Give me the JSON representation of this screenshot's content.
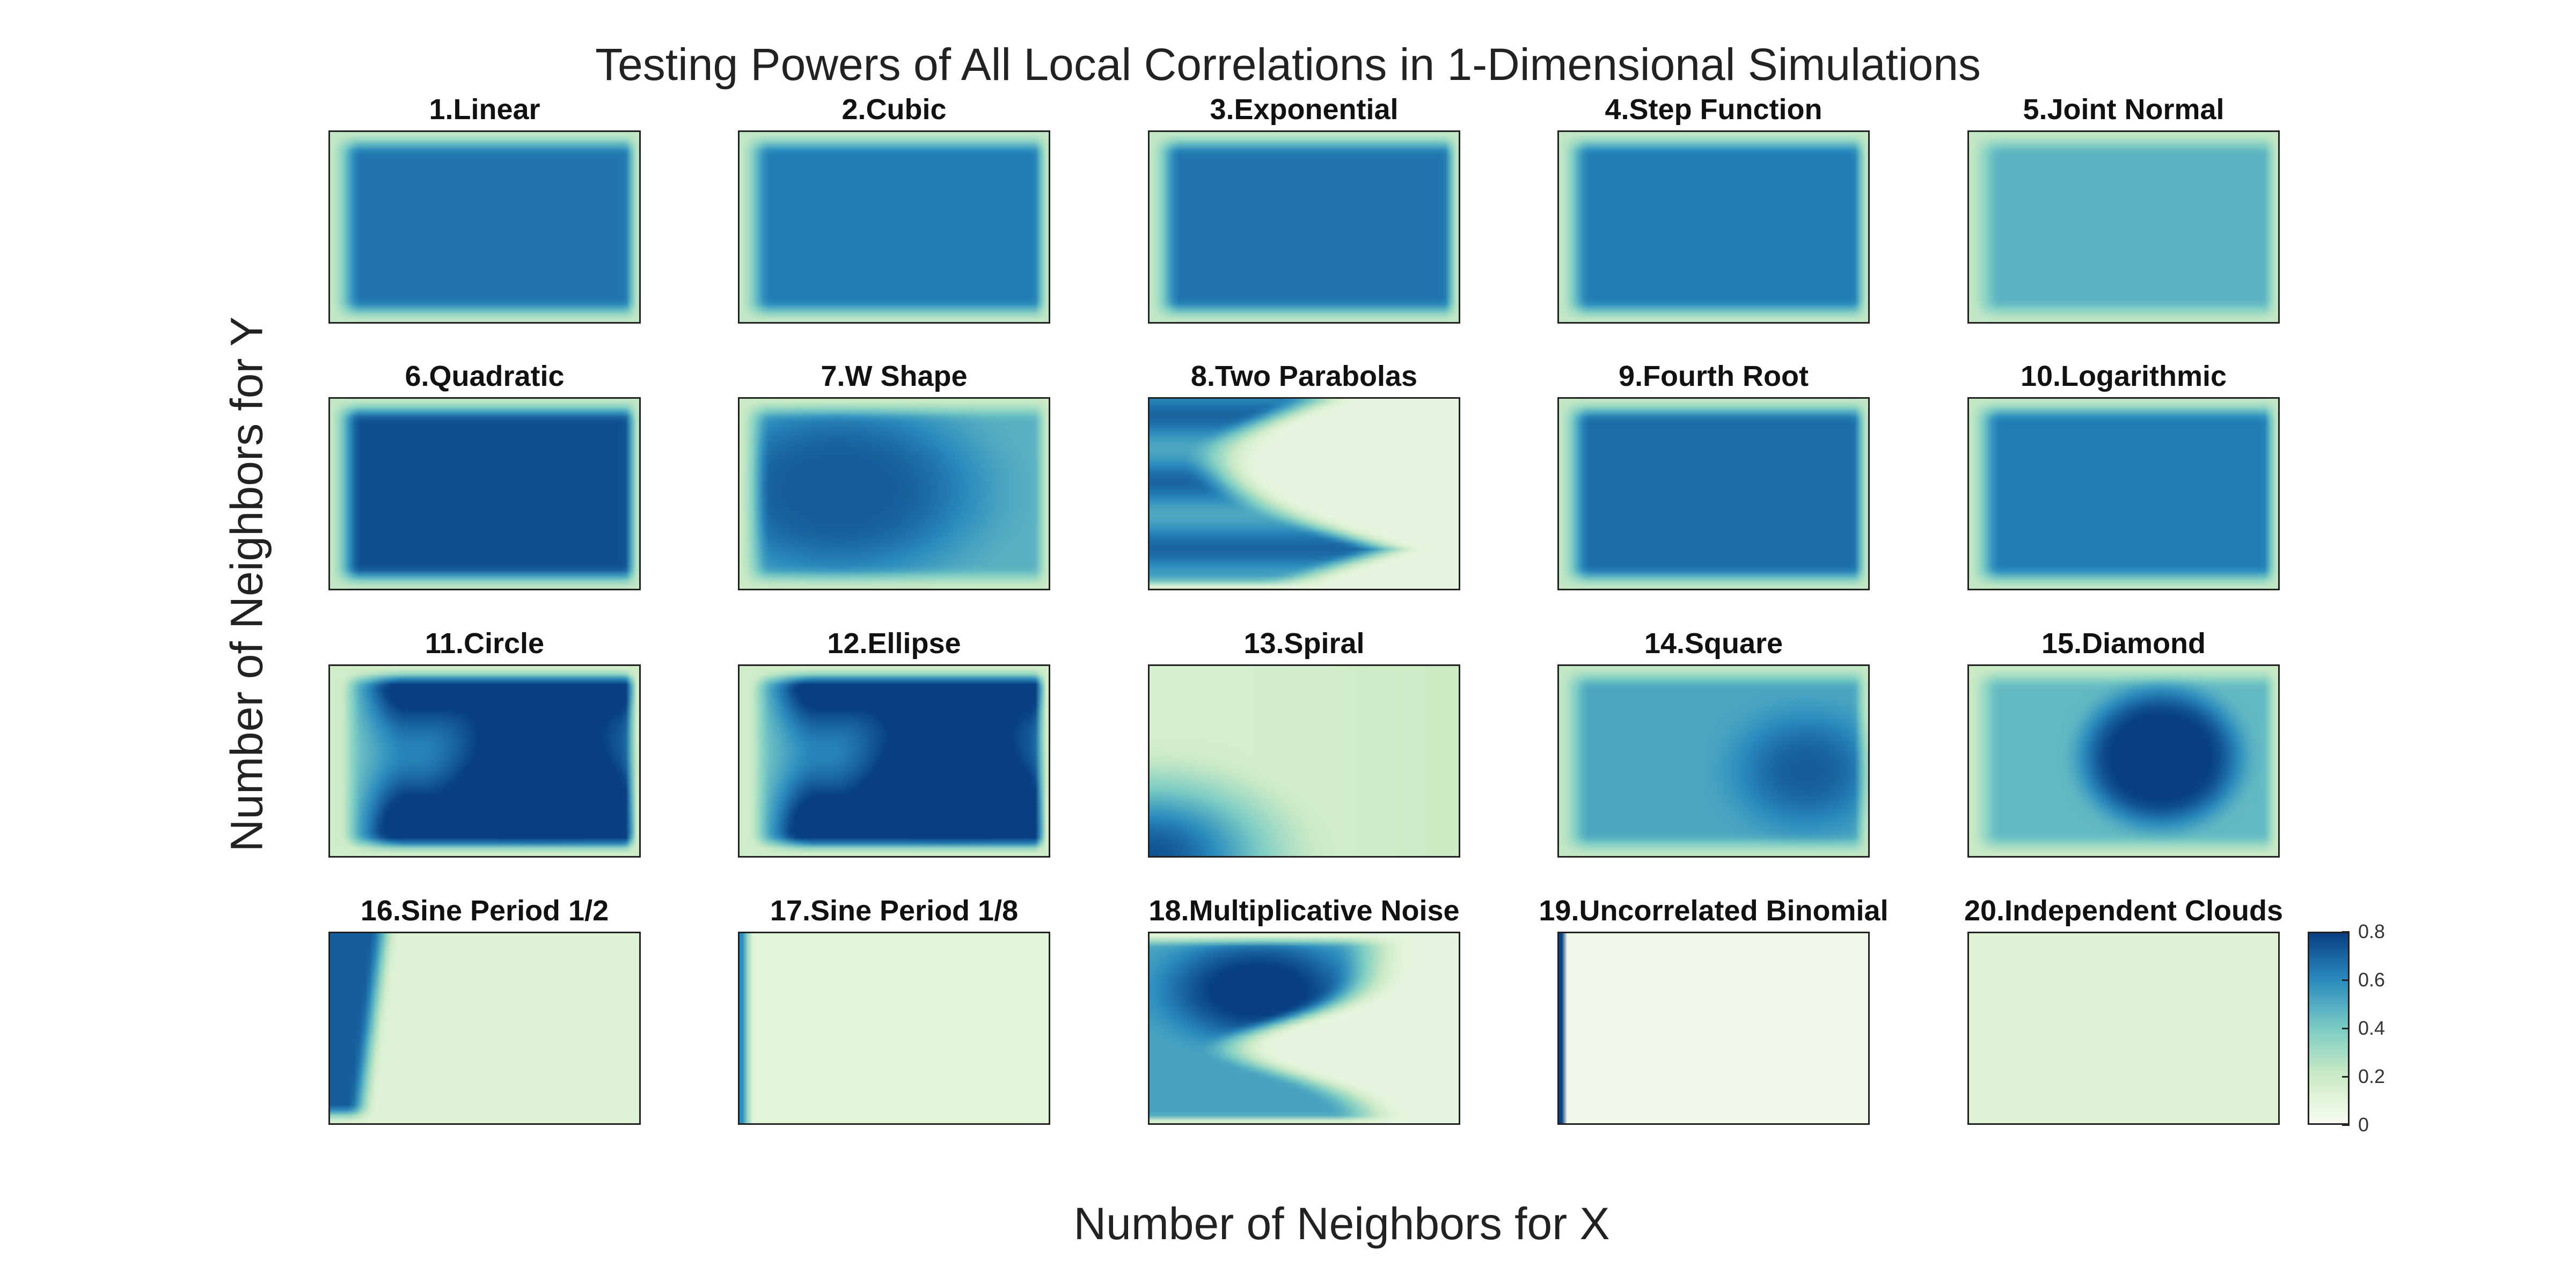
{
  "chart_data": {
    "type": "heatmap",
    "title": "Testing Powers of All Local Correlations in 1-Dimensional Simulations",
    "xlabel": "Number of Neighbors for X",
    "ylabel": "Number of Neighbors for Y",
    "colormap": "GnBu",
    "colorbar": {
      "range": [
        0,
        0.8
      ],
      "ticks": [
        0,
        0.2,
        0.4,
        0.6,
        0.8
      ],
      "tick_labels": [
        "0",
        "0.2",
        "0.4",
        "0.6",
        "0.8"
      ],
      "colors": [
        "#f7fcf0",
        "#ccebc5",
        "#7bccc4",
        "#2b8cbe",
        "#084081"
      ]
    },
    "panels": [
      {
        "title": "1.Linear",
        "pattern": "plateau",
        "level": 0.66,
        "edge": 0.22
      },
      {
        "title": "2.Cubic",
        "pattern": "plateau",
        "level": 0.64,
        "edge": 0.22
      },
      {
        "title": "3.Exponential",
        "pattern": "plateau",
        "level": 0.66,
        "edge": 0.22
      },
      {
        "title": "4.Step Function",
        "pattern": "plateau",
        "level": 0.64,
        "edge": 0.22
      },
      {
        "title": "5.Joint Normal",
        "pattern": "plateau",
        "level": 0.48,
        "edge": 0.22
      },
      {
        "title": "6.Quadratic",
        "pattern": "plateau",
        "level": 0.76,
        "edge": 0.22
      },
      {
        "title": "7.W Shape",
        "pattern": "left-blob",
        "level": 0.72,
        "edge": 0.2
      },
      {
        "title": "8.Two Parabolas",
        "pattern": "bands",
        "level": 0.7,
        "edge": 0.1
      },
      {
        "title": "9.Fourth Root",
        "pattern": "plateau",
        "level": 0.68,
        "edge": 0.22
      },
      {
        "title": "10.Logarithmic",
        "pattern": "plateau",
        "level": 0.64,
        "edge": 0.22
      },
      {
        "title": "11.Circle",
        "pattern": "right-blob",
        "level": 0.8,
        "edge": 0.22
      },
      {
        "title": "12.Ellipse",
        "pattern": "right-blob",
        "level": 0.8,
        "edge": 0.22
      },
      {
        "title": "13.Spiral",
        "pattern": "corner",
        "level": 0.75,
        "edge": 0.2
      },
      {
        "title": "14.Square",
        "pattern": "square",
        "level": 0.72,
        "edge": 0.22
      },
      {
        "title": "15.Diamond",
        "pattern": "diamond",
        "level": 0.8,
        "edge": 0.22
      },
      {
        "title": "16.Sine Period 1/2",
        "pattern": "left-strip",
        "level": 0.72,
        "edge": 0.12
      },
      {
        "title": "17.Sine Period 1/8",
        "pattern": "thin-strip",
        "level": 0.6,
        "edge": 0.1
      },
      {
        "title": "18.Multiplicative Noise",
        "pattern": "noise",
        "level": 0.78,
        "edge": 0.1
      },
      {
        "title": "19.Uncorrelated Binomial",
        "pattern": "edge-line",
        "level": 0.8,
        "edge": 0.03
      },
      {
        "title": "20.Independent Clouds",
        "pattern": "flat",
        "level": 0.12,
        "edge": 0.12
      }
    ]
  }
}
